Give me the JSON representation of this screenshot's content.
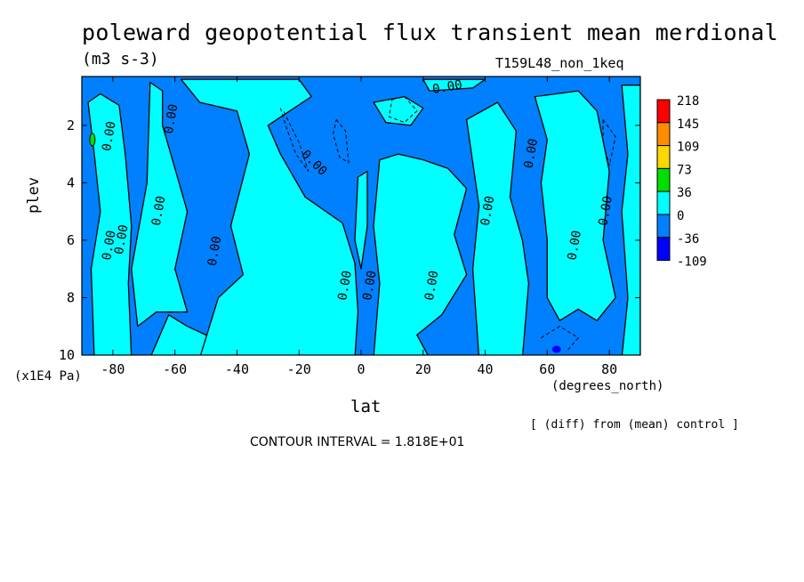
{
  "figure": {
    "title": "poleward geopotential flux transient mean merdional",
    "units": "(m3 s-3)",
    "run_label": "T159L48_non_1keq",
    "y_axis_label": "plev",
    "y_axis_units": "(x1E4 Pa)",
    "x_axis_label": "lat",
    "x_axis_units": "(degrees_north)",
    "comparison_note": "[ (diff) from (mean) control ]",
    "contour_interval": "CONTOUR INTERVAL = 1.818E+01"
  },
  "chart_data": {
    "type": "heatmap",
    "x": {
      "label": "lat",
      "units": "degrees_north",
      "range": [
        -90,
        90
      ],
      "ticks": [
        -80,
        -60,
        -40,
        -20,
        0,
        20,
        40,
        60,
        80
      ]
    },
    "y": {
      "label": "plev",
      "units": "x1E4 Pa",
      "range": [
        0.3,
        10
      ],
      "inverted": true,
      "ticks": [
        2,
        4,
        6,
        8,
        10
      ]
    },
    "colorbar": {
      "labels": [
        "218",
        "145",
        "109",
        "73",
        "36",
        "0",
        "-36",
        "-109"
      ],
      "colors": [
        "#ff0000",
        "#ff8c00",
        "#ffd700",
        "#00e000",
        "#00ffff",
        "#0080ff",
        "#0000ff"
      ]
    },
    "background_color": "#0080ff",
    "positive_color": "#00ffff",
    "contour_labels": [
      "0.00"
    ],
    "contour_interval": 18.18
  }
}
